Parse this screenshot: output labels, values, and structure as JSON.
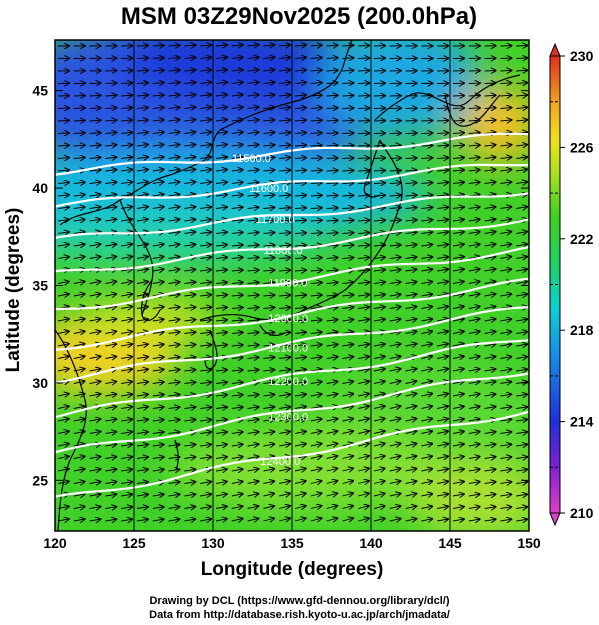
{
  "title": "MSM 03Z29Nov2025 (200.0hPa)",
  "xlabel": "Longitude (degrees)",
  "ylabel": "Latitude  (degrees)",
  "credits": [
    "Drawing by DCL (https://www.gfd-dennou.org/library/dcl/)",
    "Data from http://database.rish.kyoto-u.ac.jp/arch/jmadata/"
  ],
  "map": {
    "lon_range": [
      120,
      150
    ],
    "lat_range": [
      22.4,
      47.6
    ],
    "lon_ticks": [
      "120",
      "125",
      "130",
      "135",
      "140",
      "145",
      "150"
    ],
    "lat_ticks": [
      "25",
      "30",
      "35",
      "40",
      "45"
    ],
    "colorbar": {
      "min": 210,
      "max": 230,
      "ticks": [
        "210",
        "214",
        "218",
        "222",
        "226",
        "230"
      ]
    }
  },
  "chart_data": {
    "type": "heatmap",
    "title": "MSM 03Z29Nov2025 (200.0hPa)",
    "xlabel": "Longitude (degrees)",
    "ylabel": "Latitude  (degrees)",
    "xlim": [
      120,
      150
    ],
    "ylim": [
      22.4,
      47.6
    ],
    "vlim": [
      210,
      230
    ],
    "contours": [
      {
        "label": "11500.0",
        "value": 11500,
        "lat": 41.8,
        "label_lon": 131.2
      },
      {
        "label": "11600.0",
        "value": 11600,
        "lat": 40.2,
        "label_lon": 132.3
      },
      {
        "label": "11700.0",
        "value": 11700,
        "lat": 38.6,
        "label_lon": 132.7
      },
      {
        "label": "11800.0",
        "value": 11800,
        "lat": 37.0,
        "label_lon": 133.2
      },
      {
        "label": "11900.0",
        "value": 11900,
        "lat": 35.3,
        "label_lon": 133.5
      },
      {
        "label": "12000.0",
        "value": 12000,
        "lat": 33.5,
        "label_lon": 133.5
      },
      {
        "label": "12100.0",
        "value": 12100,
        "lat": 32.0,
        "label_lon": 133.5
      },
      {
        "label": "12200.0",
        "value": 12200,
        "lat": 30.3,
        "label_lon": 133.5
      },
      {
        "label": "12300.0",
        "value": 12300,
        "lat": 28.5,
        "label_lon": 133.5
      },
      {
        "label": "12400.0",
        "value": 12400,
        "lat": 26.3,
        "label_lon": 133.0
      }
    ]
  }
}
